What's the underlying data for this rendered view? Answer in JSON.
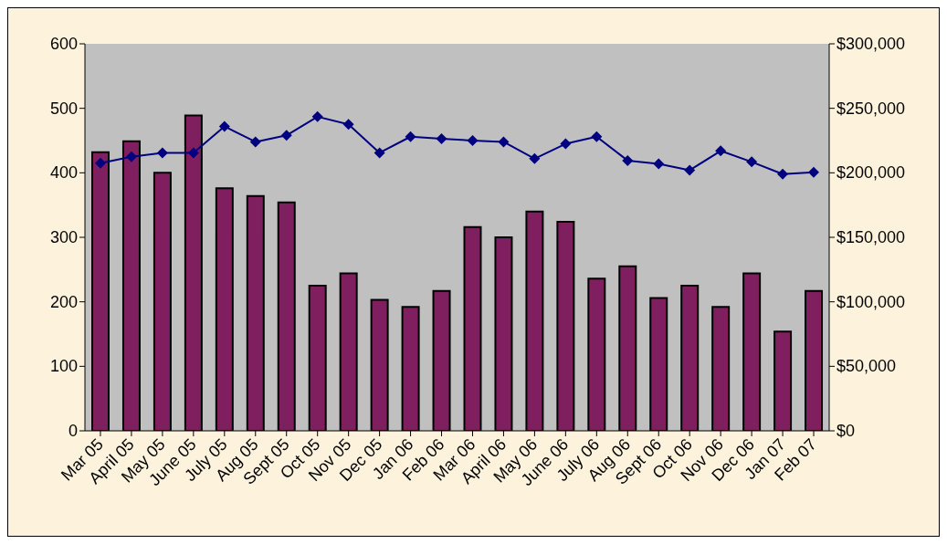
{
  "chart_data": {
    "type": "bar",
    "categories": [
      "Mar 05",
      "April 05",
      "May 05",
      "June 05",
      "July 05",
      "Aug 05",
      "Sept 05",
      "Oct 05",
      "Nov 05",
      "Dec 05",
      "Jan 06",
      "Feb 06",
      "Mar 06",
      "April 06",
      "May 06",
      "June 06",
      "July 06",
      "Aug 06",
      "Sept 06",
      "Oct 06",
      "Nov 06",
      "Dec 06",
      "Jan 07",
      "Feb 07"
    ],
    "series": [
      {
        "color": "#7f1f5f",
        "values": [
          432,
          449,
          400,
          489,
          376,
          364,
          354,
          225,
          244,
          203,
          192,
          217,
          316,
          300,
          340,
          324,
          236,
          255,
          206,
          225,
          192,
          244,
          154,
          217
        ]
      },
      {
        "type": "line",
        "axis": "y2",
        "color": "#000080",
        "values": [
          207500,
          212500,
          215500,
          215500,
          236000,
          224000,
          229000,
          243500,
          237500,
          215500,
          228000,
          226500,
          225000,
          224000,
          211000,
          222500,
          228000,
          209500,
          207000,
          202000,
          217000,
          208500,
          199000,
          200500
        ]
      }
    ],
    "ylim": [
      0,
      600
    ],
    "yticks": [
      0,
      100,
      200,
      300,
      400,
      500,
      600
    ],
    "y2lim": [
      0,
      300000
    ],
    "y2ticks": [
      {
        "value": 0,
        "label": "$0"
      },
      {
        "value": 50000,
        "label": "$50,000"
      },
      {
        "value": 100000,
        "label": "$100,000"
      },
      {
        "value": 150000,
        "label": "$150,000"
      },
      {
        "value": 200000,
        "label": "$200,000"
      },
      {
        "value": 250000,
        "label": "$250,000"
      },
      {
        "value": 300000,
        "label": "$300,000"
      }
    ],
    "grid": false,
    "legend": false,
    "marker": "diamond",
    "line_style": "solid"
  }
}
